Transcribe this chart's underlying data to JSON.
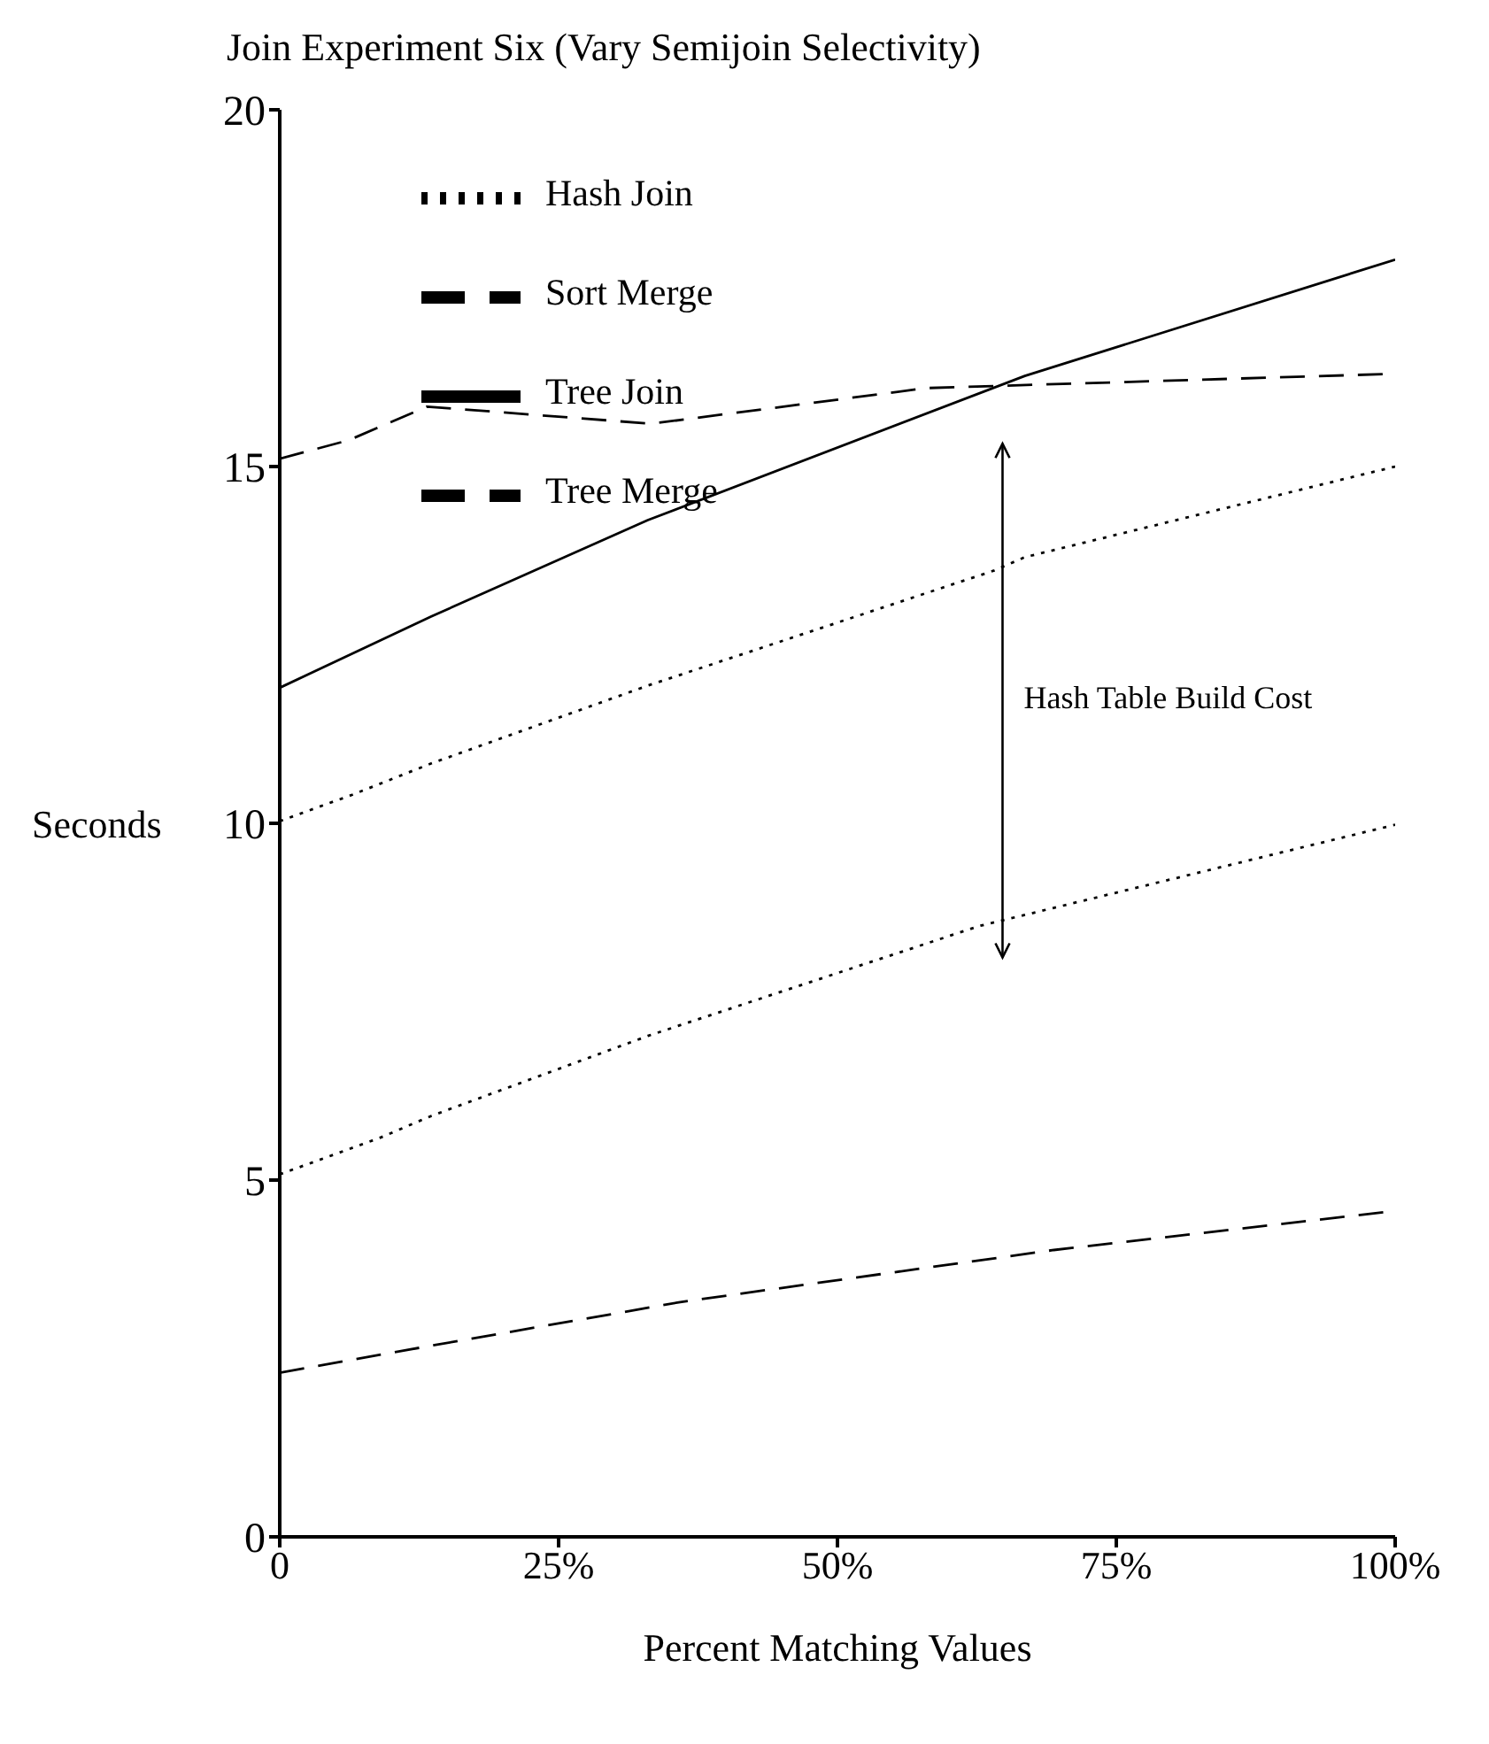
{
  "chart_data": {
    "type": "line",
    "title": "Join Experiment Six  (Vary Semijoin Selectivity)",
    "xlabel": "Percent Matching Values",
    "ylabel": "Seconds",
    "xlim": [
      0,
      100
    ],
    "xticks": [
      0,
      {
        "value": 25,
        "label": "25%"
      },
      {
        "value": 50,
        "label": "50%"
      },
      {
        "value": 75,
        "label": "75%"
      },
      {
        "value": 100,
        "label": "100%"
      }
    ],
    "ylim": [
      0,
      20
    ],
    "yticks": [
      0,
      5,
      10,
      15,
      20
    ],
    "grid": false,
    "legend": "top left",
    "marker": "none",
    "series": [
      {
        "name": "Hash Join",
        "color": "#000000",
        "line_style": "dotted",
        "x": [
          0,
          6.5,
          13.6,
          33,
          64,
          66.8,
          100
        ],
        "values": [
          10.03,
          10.4,
          10.84,
          11.93,
          13.54,
          13.73,
          15
        ]
      },
      {
        "name": "Tree Join",
        "color": "#000000",
        "line_style": "solid",
        "x": [
          0,
          13.6,
          33,
          66.8,
          100
        ],
        "values": [
          11.9,
          12.9,
          14.25,
          16.27,
          17.9
        ]
      },
      {
        "name": "Sort Merge",
        "color": "#000000",
        "line_style": "dashed",
        "x": [
          0,
          6.2,
          13.2,
          33.3,
          58,
          100
        ],
        "values": [
          15.11,
          15.37,
          15.84,
          15.6,
          16.1,
          16.3
        ]
      },
      {
        "name": "Tree Merge",
        "color": "#000000",
        "line_style": "dashed",
        "x": [
          0,
          12.9,
          35.9,
          69.4,
          99
        ],
        "values": [
          2.3,
          2.66,
          3.29,
          4.02,
          4.55
        ]
      },
      {
        "color": "#000000",
        "line_style": "dotted",
        "x": [
          0,
          9.1,
          13.6,
          33,
          62.7,
          100
        ],
        "values": [
          5.08,
          5.6,
          5.9,
          7.02,
          8.56,
          9.98
        ]
      }
    ],
    "annotations": [
      "Hash Table Build Cost"
    ]
  }
}
